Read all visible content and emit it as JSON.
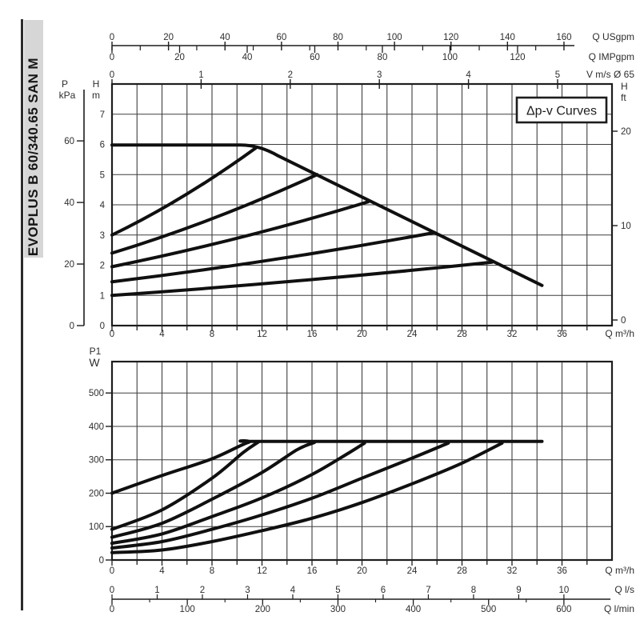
{
  "sidebar": {
    "model_label": "EVOPLUS B 60/340.65 SAN M"
  },
  "chart_data": [
    {
      "name": "head-flow-chart",
      "type": "line",
      "title": "Δp-v Curves",
      "xlabel": "Q m³/h",
      "ylabel": "H m",
      "x_range_m3h": [
        0,
        40
      ],
      "y_range_m": [
        0,
        8
      ],
      "x_grid_step_m3h": 2,
      "y_grid_step_m": 1,
      "axes": {
        "top_usgpm": {
          "unit": "Q USgpm",
          "ticks": [
            0,
            20,
            40,
            60,
            80,
            100,
            120,
            140,
            160
          ],
          "minor_step": 10
        },
        "top_impgpm": {
          "unit": "Q IMPgpm",
          "ticks": [
            0,
            20,
            40,
            60,
            80,
            100,
            120
          ]
        },
        "top_v": {
          "unit": "V m/s Ø 65",
          "ticks": [
            0,
            1,
            2,
            3,
            4,
            5
          ]
        },
        "left_kpa": {
          "unit": [
            "P",
            "kPa"
          ],
          "ticks": [
            0,
            20,
            40,
            60
          ]
        },
        "left_m": {
          "unit": [
            "H",
            "m"
          ],
          "ticks": [
            0,
            1,
            2,
            3,
            4,
            5,
            6,
            7
          ]
        },
        "right_ft": {
          "unit": [
            "H",
            "ft"
          ],
          "ticks": [
            0,
            10,
            20
          ]
        },
        "bottom_m3h": {
          "unit": "Q m³/h",
          "ticks": [
            0,
            4,
            8,
            12,
            16,
            20,
            24,
            28,
            32,
            36
          ],
          "minor_step": 2
        }
      },
      "series": [
        {
          "name": "max-speed-curve",
          "kind": "max",
          "flat_from_m3h": 0,
          "head_m": 5.98,
          "flat_to_m3h": 10.3,
          "shoulder_to": [
            13.3,
            5.62
          ],
          "end": [
            34.4,
            1.33
          ]
        },
        {
          "name": "dpv-curve-1",
          "kind": "dpv",
          "start_h_m": 3.0,
          "end": [
            11.5,
            5.88
          ]
        },
        {
          "name": "dpv-curve-2",
          "kind": "dpv",
          "start_h_m": 2.4,
          "end": [
            16.4,
            5.0
          ]
        },
        {
          "name": "dpv-curve-3",
          "kind": "dpv",
          "start_h_m": 1.95,
          "end": [
            20.5,
            4.1
          ]
        },
        {
          "name": "dpv-curve-4",
          "kind": "dpv",
          "start_h_m": 1.45,
          "end": [
            25.8,
            3.08
          ]
        },
        {
          "name": "dpv-curve-5",
          "kind": "dpv",
          "start_h_m": 1.0,
          "end": [
            30.4,
            2.1
          ]
        }
      ]
    },
    {
      "name": "power-flow-chart",
      "type": "line",
      "xlabel": "Q m³/h",
      "ylabel": "P1 W",
      "x_range_m3h": [
        0,
        40
      ],
      "y_range_w": [
        0,
        594
      ],
      "x_grid_step_m3h": 2,
      "y_grid_step_w": 100,
      "plateau_w": 355,
      "axes": {
        "left_w": {
          "unit": [
            "P1",
            "W"
          ],
          "ticks": [
            0,
            100,
            200,
            300,
            400,
            500
          ]
        },
        "bottom_m3h": {
          "unit": "Q m³/h",
          "ticks": [
            0,
            4,
            8,
            12,
            16,
            20,
            24,
            28,
            32,
            36
          ],
          "minor_step": 2
        },
        "bottom_ls": {
          "unit": "Q l/s",
          "ticks": [
            0,
            1,
            2,
            3,
            4,
            5,
            6,
            7,
            8,
            9,
            10
          ]
        },
        "bottom_lmin": {
          "unit": "Q l/min",
          "ticks": [
            0,
            100,
            200,
            300,
            400,
            500,
            600
          ],
          "minor_step": 50
        }
      },
      "series": [
        {
          "name": "p1-max-speed",
          "points": [
            [
              0,
              200
            ],
            [
              4,
              253
            ],
            [
              8,
              303
            ],
            [
              10.9,
              352
            ],
            [
              12.2,
              355
            ],
            [
              34.4,
              355
            ]
          ]
        },
        {
          "name": "p1-dpv-1",
          "points": [
            [
              0,
              92
            ],
            [
              4,
              150
            ],
            [
              8,
              245
            ],
            [
              10.5,
              322
            ],
            [
              11.7,
              353
            ]
          ]
        },
        {
          "name": "p1-dpv-2",
          "points": [
            [
              0,
              68
            ],
            [
              4,
              110
            ],
            [
              8,
              182
            ],
            [
              12,
              262
            ],
            [
              14.8,
              330
            ],
            [
              16.2,
              352
            ]
          ]
        },
        {
          "name": "p1-dpv-3",
          "points": [
            [
              0,
              50
            ],
            [
              4,
              78
            ],
            [
              8,
              130
            ],
            [
              12,
              186
            ],
            [
              16,
              256
            ],
            [
              19,
              322
            ],
            [
              20.2,
              350
            ]
          ]
        },
        {
          "name": "p1-dpv-4",
          "points": [
            [
              0,
              36
            ],
            [
              4,
              55
            ],
            [
              8,
              92
            ],
            [
              12,
              135
            ],
            [
              16,
              185
            ],
            [
              20,
              245
            ],
            [
              24,
              305
            ],
            [
              26.9,
              350
            ]
          ]
        },
        {
          "name": "p1-dpv-5",
          "points": [
            [
              0,
              22
            ],
            [
              4,
              30
            ],
            [
              8,
              55
            ],
            [
              12,
              88
            ],
            [
              16,
              125
            ],
            [
              20,
              172
            ],
            [
              24,
              228
            ],
            [
              28,
              290
            ],
            [
              31.2,
              350
            ]
          ]
        }
      ]
    }
  ],
  "colors": {
    "curve": "#101010",
    "grid": "#3e3e3e",
    "frame": "#1d1d1d",
    "text": "#2e2e2e",
    "strip_bg": "#d6d6d6"
  }
}
